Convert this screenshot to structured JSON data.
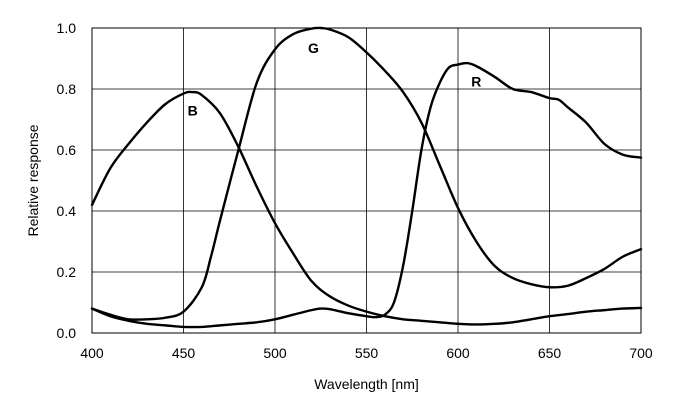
{
  "chart_data": {
    "type": "line",
    "title": "",
    "xlabel": "Wavelength [nm]",
    "ylabel": "Relative response",
    "xlim": [
      400,
      700
    ],
    "ylim": [
      0,
      1.0
    ],
    "x_ticks": [
      "400",
      "450",
      "500",
      "550",
      "600",
      "650",
      "700"
    ],
    "y_ticks": [
      "0.0",
      "0.2",
      "0.4",
      "0.6",
      "0.8",
      "1.0"
    ],
    "grid": true,
    "series": [
      {
        "name": "B",
        "x": [
          400,
          410,
          420,
          430,
          440,
          450,
          455,
          460,
          470,
          480,
          490,
          500,
          510,
          520,
          530,
          540,
          550,
          560,
          570,
          580,
          590,
          600,
          610,
          620,
          630,
          640,
          650,
          660,
          670,
          680,
          690,
          700
        ],
        "y": [
          0.42,
          0.54,
          0.62,
          0.69,
          0.75,
          0.785,
          0.79,
          0.78,
          0.72,
          0.61,
          0.48,
          0.36,
          0.26,
          0.17,
          0.12,
          0.09,
          0.07,
          0.055,
          0.045,
          0.04,
          0.035,
          0.03,
          0.028,
          0.03,
          0.035,
          0.045,
          0.055,
          0.062,
          0.07,
          0.075,
          0.08,
          0.082
        ]
      },
      {
        "name": "G",
        "x": [
          400,
          410,
          420,
          430,
          440,
          450,
          460,
          465,
          470,
          480,
          490,
          500,
          510,
          520,
          525,
          530,
          540,
          550,
          560,
          570,
          580,
          590,
          600,
          610,
          620,
          630,
          640,
          650,
          660,
          670,
          680,
          690,
          700
        ],
        "y": [
          0.08,
          0.06,
          0.045,
          0.045,
          0.05,
          0.07,
          0.15,
          0.25,
          0.37,
          0.6,
          0.82,
          0.93,
          0.98,
          0.998,
          1.0,
          0.995,
          0.97,
          0.92,
          0.86,
          0.79,
          0.69,
          0.55,
          0.41,
          0.3,
          0.22,
          0.18,
          0.16,
          0.15,
          0.155,
          0.18,
          0.21,
          0.25,
          0.275
        ]
      },
      {
        "name": "R",
        "x": [
          400,
          410,
          420,
          430,
          440,
          450,
          460,
          470,
          480,
          490,
          500,
          510,
          520,
          525,
          530,
          540,
          550,
          555,
          560,
          565,
          570,
          575,
          580,
          585,
          590,
          595,
          600,
          605,
          610,
          620,
          630,
          640,
          650,
          655,
          660,
          670,
          680,
          690,
          700
        ],
        "y": [
          0.08,
          0.055,
          0.04,
          0.03,
          0.025,
          0.02,
          0.02,
          0.025,
          0.03,
          0.035,
          0.045,
          0.06,
          0.075,
          0.08,
          0.078,
          0.065,
          0.055,
          0.052,
          0.06,
          0.1,
          0.22,
          0.4,
          0.6,
          0.74,
          0.82,
          0.87,
          0.88,
          0.885,
          0.875,
          0.84,
          0.8,
          0.79,
          0.77,
          0.765,
          0.74,
          0.69,
          0.62,
          0.585,
          0.575
        ]
      }
    ],
    "annotations": [
      {
        "text": "B",
        "x": 455,
        "y": 0.73
      },
      {
        "text": "G",
        "x": 521,
        "y": 0.935
      },
      {
        "text": "R",
        "x": 610,
        "y": 0.825
      }
    ]
  }
}
